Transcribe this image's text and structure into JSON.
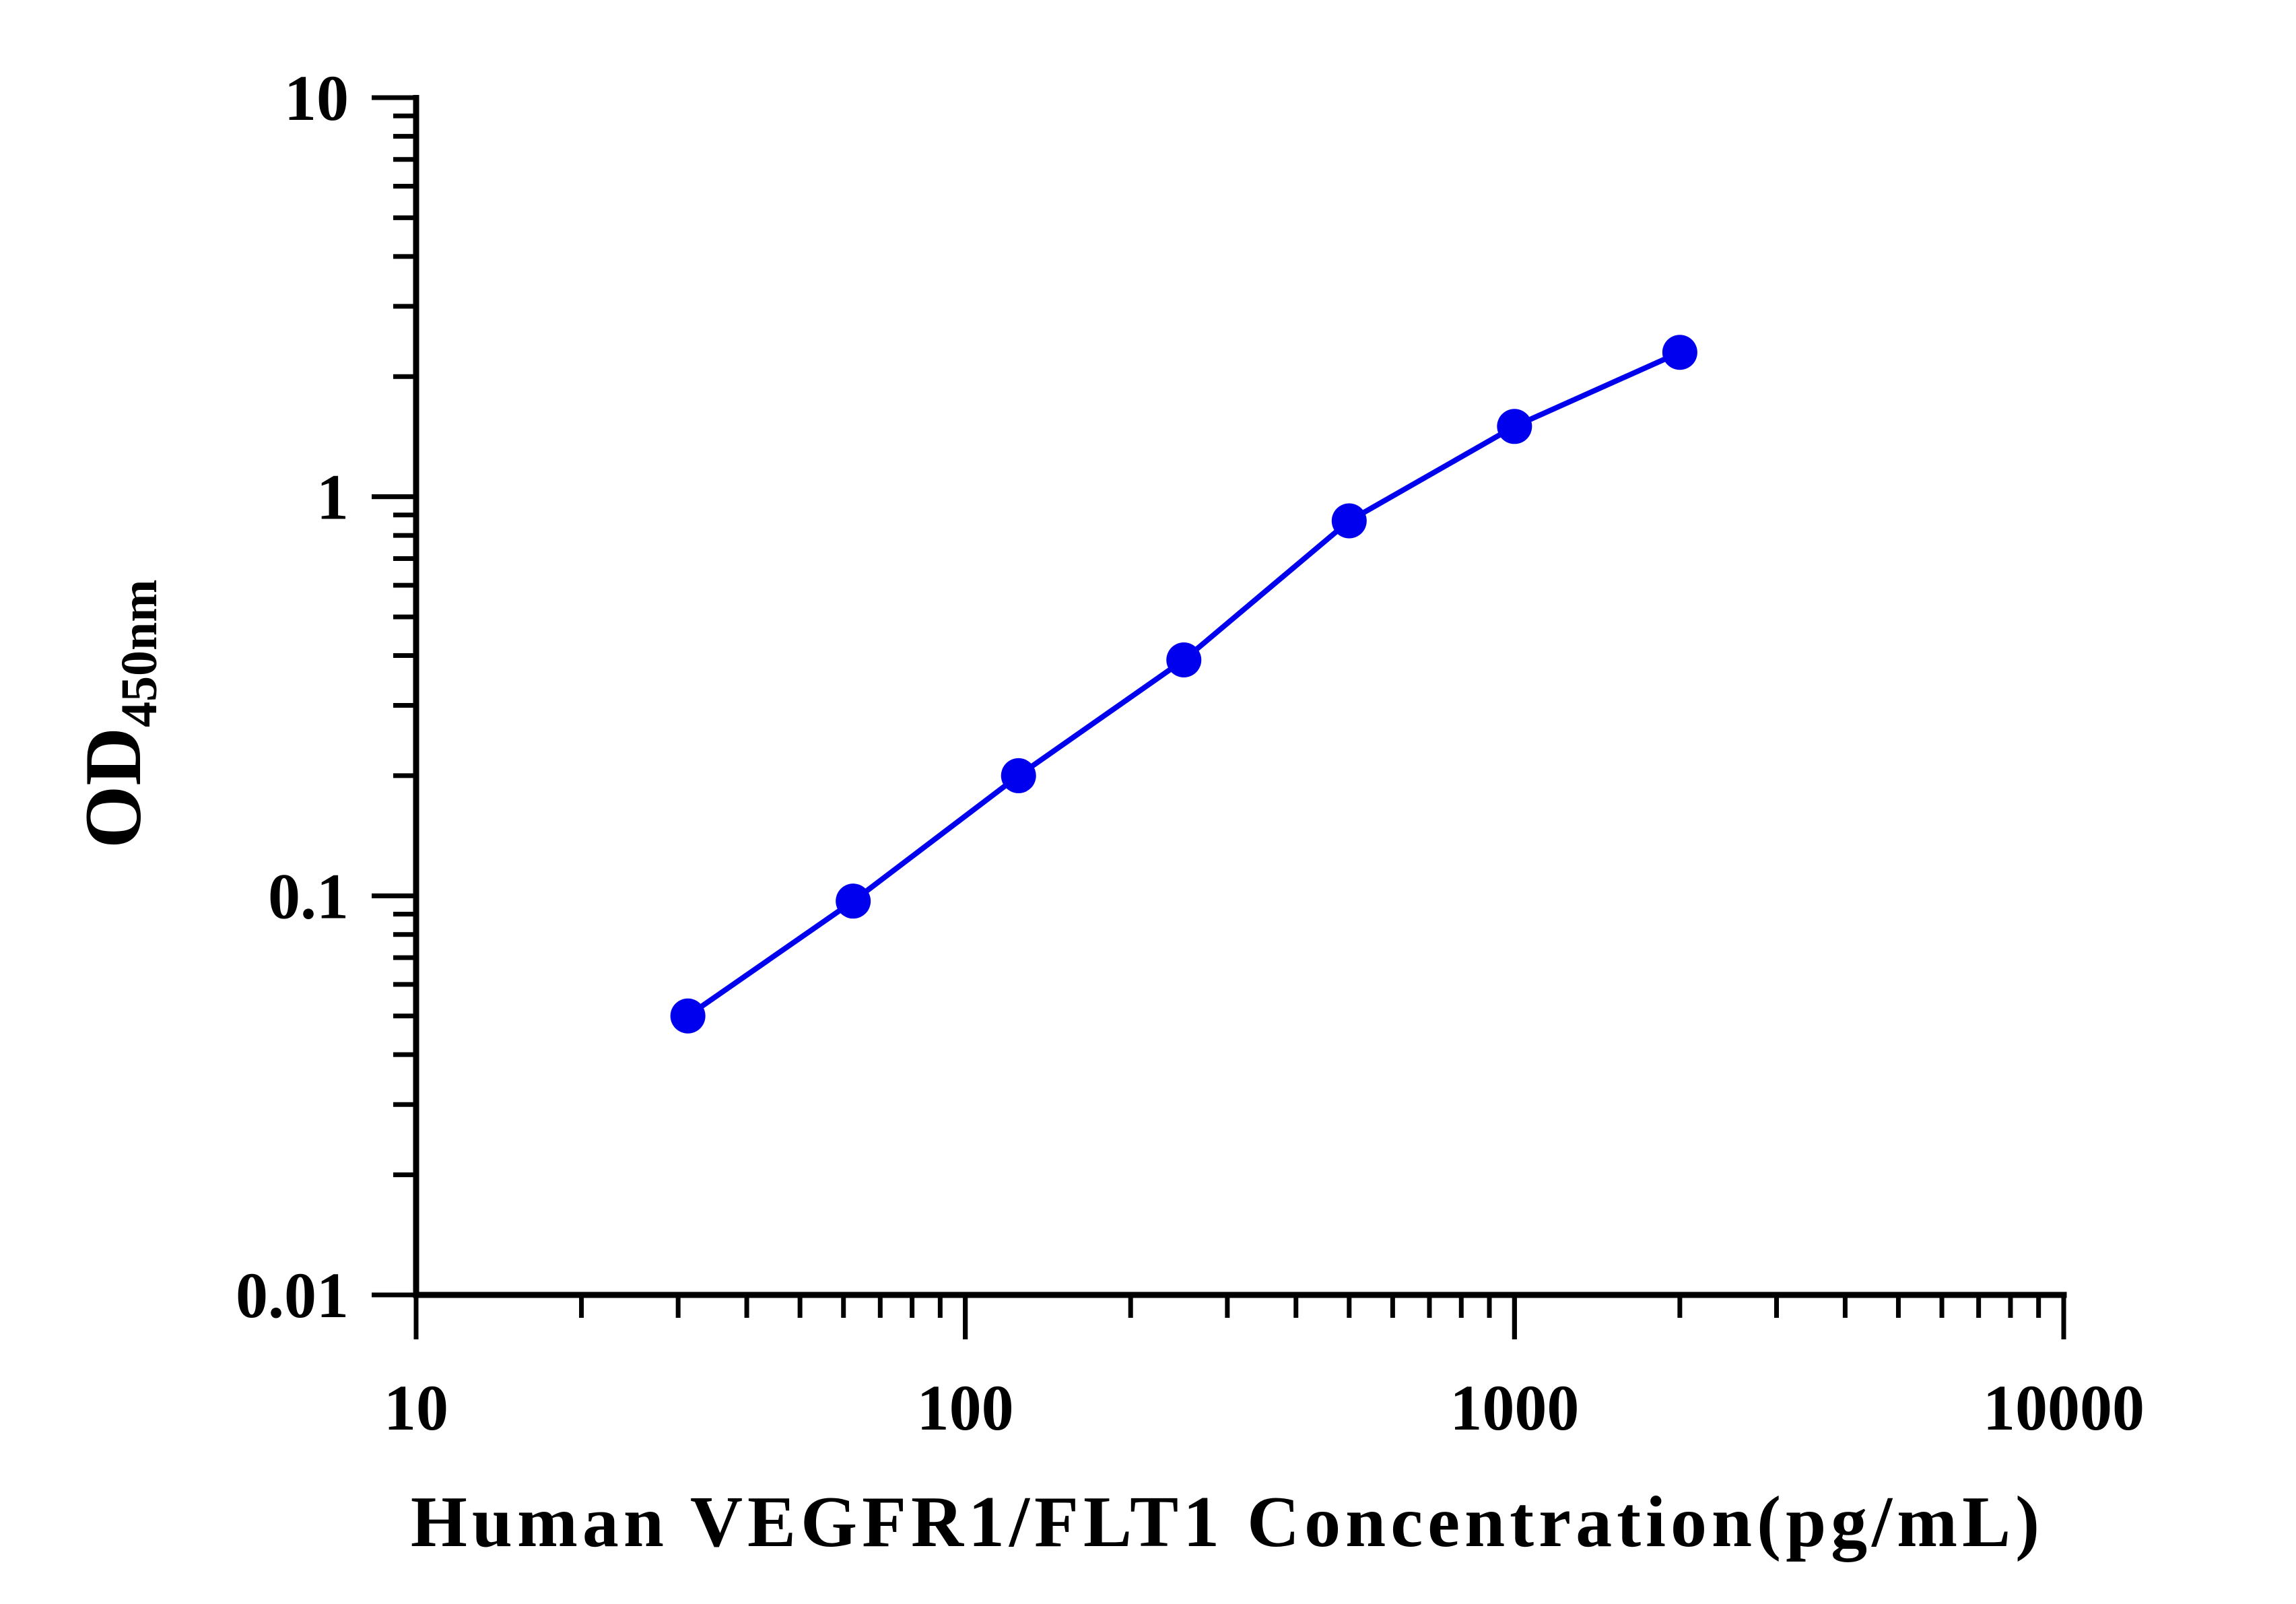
{
  "chart_data": {
    "type": "line",
    "xlabel": "Human VEGFR1/FLT1 Concentration(pg/mL)",
    "ylabel": {
      "main": "OD",
      "subscript": "450nm"
    },
    "x_scale": "log",
    "y_scale": "log",
    "xlim": [
      10,
      10000
    ],
    "ylim": [
      0.01,
      10
    ],
    "x_ticks": [
      "10",
      "100",
      "1000",
      "10000"
    ],
    "y_ticks": [
      "0.01",
      "0.1",
      "1",
      "10"
    ],
    "grid": false,
    "legend": "none",
    "series": [
      {
        "color": "#0000ee",
        "marker": "circle",
        "x": [
          31.25,
          62.5,
          125,
          250,
          500,
          1000,
          2000
        ],
        "y": [
          0.05,
          0.097,
          0.2,
          0.39,
          0.87,
          1.5,
          2.3
        ]
      }
    ]
  }
}
